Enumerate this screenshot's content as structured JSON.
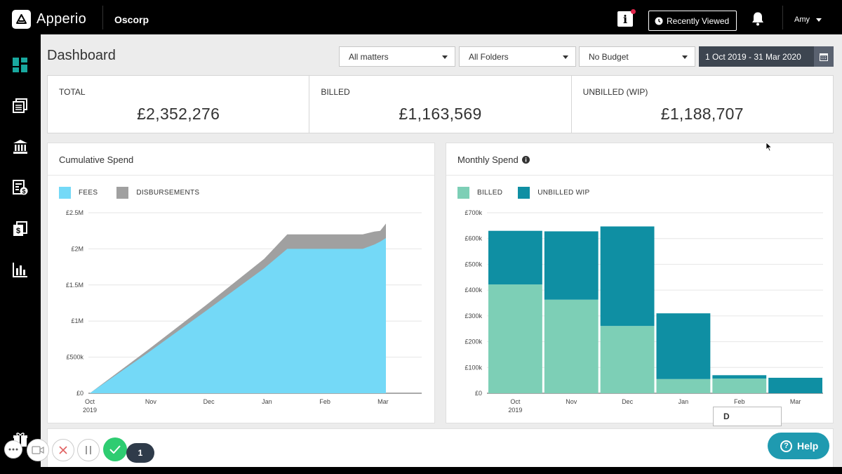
{
  "app": {
    "name": "Apperio",
    "organisation": "Oscorp"
  },
  "header": {
    "recently_viewed": "Recently Viewed",
    "user_name": "Amy",
    "info_label": "i"
  },
  "sidebar": {
    "items": [
      {
        "icon": "dashboard-icon",
        "active": true
      },
      {
        "icon": "matters-icon",
        "active": false
      },
      {
        "icon": "bank-icon",
        "active": false
      },
      {
        "icon": "budget-icon",
        "active": false
      },
      {
        "icon": "invoices-icon",
        "active": false
      },
      {
        "icon": "reports-icon",
        "active": false
      }
    ]
  },
  "page": {
    "title": "Dashboard",
    "filters": {
      "matters": "All matters",
      "folders": "All Folders",
      "budget": "No Budget",
      "date_range": "1 Oct 2019 - 31 Mar 2020"
    }
  },
  "stats": [
    {
      "label": "TOTAL",
      "value": "£2,352,276"
    },
    {
      "label": "BILLED",
      "value": "£1,163,569"
    },
    {
      "label": "UNBILLED (WIP)",
      "value": "£1,188,707"
    }
  ],
  "colors": {
    "fees": "#74d9f7",
    "disbursements": "#a0a0a0",
    "billed": "#7dcfb6",
    "unbilled": "#0f8fa3",
    "accent": "#19a89f"
  },
  "chart_data": [
    {
      "type": "area",
      "title": "Cumulative Spend",
      "legend": [
        "FEES",
        "DISBURSEMENTS"
      ],
      "y_ticks": [
        "£0",
        "£500k",
        "£1M",
        "£1.5M",
        "£2M",
        "£2.5M"
      ],
      "ylim": [
        0,
        2500000
      ],
      "x_ticks": [
        "Oct",
        "Nov",
        "Dec",
        "Jan",
        "Feb",
        "Mar"
      ],
      "x_tick_sublabel": "2019",
      "grid": true,
      "series": [
        {
          "name": "FEES",
          "x": [
            0,
            1.0,
            2.0,
            3.0,
            3.4,
            4.0,
            4.7,
            4.9,
            5.0,
            5.1
          ],
          "values": [
            0,
            560000,
            1140000,
            1730000,
            2000000,
            2000000,
            2000000,
            2060000,
            2100000,
            2150000
          ]
        },
        {
          "name": "DISBURSEMENTS",
          "x": [
            0,
            1.0,
            2.0,
            3.0,
            3.4,
            4.0,
            4.7,
            4.9,
            5.0,
            5.1
          ],
          "values": [
            0,
            40000,
            80000,
            130000,
            200000,
            200000,
            200000,
            180000,
            150000,
            200000
          ]
        }
      ]
    },
    {
      "type": "bar",
      "title": "Monthly Spend",
      "legend": [
        "BILLED",
        "UNBILLED WIP"
      ],
      "categories": [
        "Oct",
        "Nov",
        "Dec",
        "Jan",
        "Feb",
        "Mar"
      ],
      "x_tick_sublabel": "2019",
      "y_ticks": [
        "£0",
        "£100k",
        "£200k",
        "£300k",
        "£400k",
        "£500k",
        "£600k",
        "£700k"
      ],
      "ylim": [
        0,
        700000
      ],
      "grid": true,
      "stacked": true,
      "series": [
        {
          "name": "BILLED",
          "values": [
            422000,
            363000,
            261000,
            55000,
            57000,
            0
          ]
        },
        {
          "name": "UNBILLED WIP",
          "values": [
            208000,
            265000,
            386000,
            255000,
            13000,
            60000
          ]
        }
      ]
    }
  ],
  "bottom": {
    "button_label": "D",
    "help_label": "Help",
    "pending_count": "1"
  }
}
